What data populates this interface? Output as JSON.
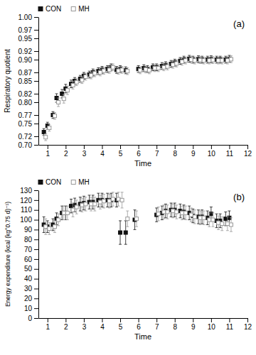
{
  "chart_data": [
    {
      "type": "scatter",
      "x_label": "Time",
      "y_label": "Respiratory quotient",
      "annotation": "(a)",
      "legend": "upper left",
      "grid": false,
      "xlim": [
        0.5,
        12
      ],
      "xticks": [
        1,
        2,
        3,
        4,
        5,
        6,
        7,
        8,
        9,
        10,
        11,
        12
      ],
      "ylim": [
        0.7,
        1.0
      ],
      "yticks": [
        {
          "value": 0.7,
          "label": "0.70"
        },
        0.72,
        0.75,
        0.77,
        {
          "value": 0.8,
          "label": "0.80"
        },
        0.82,
        0.85,
        0.87,
        {
          "value": 0.9,
          "label": "0.90"
        },
        0.92,
        0.95,
        0.97,
        {
          "value": 1.0,
          "label": "1.00"
        }
      ],
      "series": [
        {
          "name": "CON",
          "color": "#111111",
          "marker": "square",
          "x": [
            0.8,
            1.0,
            1.3,
            1.5,
            1.8,
            2.0,
            2.3,
            2.5,
            2.8,
            3.0,
            3.3,
            3.5,
            3.8,
            4.0,
            4.3,
            4.5,
            4.8,
            5.0,
            5.3,
            6.0,
            6.3,
            6.5,
            6.8,
            7.0,
            7.3,
            7.5,
            7.8,
            8.0,
            8.3,
            8.5,
            8.8,
            9.0,
            9.3,
            9.5,
            9.8,
            10.0,
            10.3,
            10.5,
            10.8,
            11.0
          ],
          "values": [
            0.73,
            0.745,
            0.77,
            0.81,
            0.82,
            0.832,
            0.843,
            0.85,
            0.855,
            0.862,
            0.865,
            0.87,
            0.873,
            0.876,
            0.878,
            0.882,
            0.876,
            0.878,
            0.875,
            0.878,
            0.88,
            0.878,
            0.882,
            0.882,
            0.885,
            0.887,
            0.89,
            0.893,
            0.897,
            0.9,
            0.902,
            0.9,
            0.901,
            0.9,
            0.9,
            0.901,
            0.9,
            0.9,
            0.9,
            0.902
          ],
          "error": [
            0.008,
            0.008,
            0.008,
            0.01,
            0.01,
            0.01,
            0.009,
            0.008,
            0.008,
            0.008,
            0.008,
            0.008,
            0.008,
            0.008,
            0.008,
            0.008,
            0.008,
            0.008,
            0.008,
            0.008,
            0.008,
            0.008,
            0.008,
            0.008,
            0.008,
            0.008,
            0.008,
            0.008,
            0.008,
            0.008,
            0.008,
            0.008,
            0.008,
            0.008,
            0.008,
            0.008,
            0.008,
            0.008,
            0.008,
            0.008
          ]
        },
        {
          "name": "MH",
          "color": "#999999",
          "marker": "square-open",
          "x": [
            0.9,
            1.1,
            1.4,
            1.6,
            1.9,
            2.1,
            2.4,
            2.6,
            2.9,
            3.1,
            3.4,
            3.6,
            3.9,
            4.1,
            4.4,
            4.6,
            4.9,
            5.1,
            5.4,
            6.1,
            6.4,
            6.6,
            6.9,
            7.1,
            7.4,
            7.6,
            7.9,
            8.1,
            8.4,
            8.6,
            8.9,
            9.1,
            9.4,
            9.6,
            9.9,
            10.1,
            10.4,
            10.6,
            10.9,
            11.1
          ],
          "values": [
            0.718,
            0.74,
            0.768,
            0.8,
            0.808,
            0.828,
            0.84,
            0.847,
            0.852,
            0.86,
            0.863,
            0.868,
            0.87,
            0.874,
            0.876,
            0.882,
            0.874,
            0.876,
            0.873,
            0.875,
            0.877,
            0.875,
            0.88,
            0.88,
            0.882,
            0.884,
            0.888,
            0.891,
            0.895,
            0.898,
            0.9,
            0.898,
            0.899,
            0.898,
            0.898,
            0.899,
            0.898,
            0.898,
            0.898,
            0.901
          ],
          "error": [
            0.008,
            0.008,
            0.008,
            0.01,
            0.01,
            0.01,
            0.009,
            0.008,
            0.008,
            0.008,
            0.008,
            0.008,
            0.008,
            0.008,
            0.008,
            0.008,
            0.008,
            0.008,
            0.008,
            0.008,
            0.008,
            0.008,
            0.008,
            0.008,
            0.008,
            0.008,
            0.008,
            0.008,
            0.008,
            0.008,
            0.008,
            0.008,
            0.008,
            0.008,
            0.008,
            0.008,
            0.008,
            0.008,
            0.008,
            0.008
          ]
        }
      ]
    },
    {
      "type": "scatter",
      "x_label": "Time",
      "y_label": "Energy expenditure (kcal (kg°0.75 d)⁻¹)",
      "annotation": "(b)",
      "legend": "upper left",
      "grid": false,
      "xlim": [
        0.5,
        12
      ],
      "xticks": [
        1,
        2,
        3,
        4,
        5,
        6,
        7,
        8,
        9,
        10,
        11,
        12
      ],
      "ylim": [
        0,
        130
      ],
      "yticks": [
        0,
        10,
        20,
        30,
        40,
        50,
        60,
        70,
        80,
        90,
        100,
        110,
        120,
        130
      ],
      "series": [
        {
          "name": "CON",
          "color": "#111111",
          "marker": "square",
          "x": [
            0.8,
            1.0,
            1.3,
            1.5,
            1.8,
            2.0,
            2.3,
            2.5,
            2.8,
            3.0,
            3.3,
            3.5,
            3.8,
            4.0,
            4.3,
            4.5,
            4.8,
            5.0,
            5.3,
            5.8,
            7.0,
            7.3,
            7.5,
            7.8,
            8.0,
            8.3,
            8.5,
            8.8,
            9.0,
            9.3,
            9.5,
            9.8,
            10.0,
            10.3,
            10.5,
            10.8,
            11.0
          ],
          "values": [
            95.0,
            93.0,
            95.0,
            101.0,
            107.0,
            107.0,
            114.0,
            115.0,
            116.0,
            117.0,
            118.0,
            118.0,
            120.0,
            120.0,
            120.0,
            120.0,
            120.0,
            87.0,
            87.0,
            100.0,
            105.0,
            107.0,
            109.0,
            110.0,
            110.0,
            109.0,
            108.0,
            107.0,
            104.0,
            103.0,
            103.0,
            102.0,
            106.0,
            99.0,
            99.0,
            101.0,
            102.0
          ],
          "error": [
            8.0,
            6.0,
            6.0,
            6.0,
            7.0,
            7.0,
            7.0,
            7.0,
            7.0,
            7.0,
            7.0,
            7.0,
            7.0,
            7.0,
            7.0,
            7.0,
            7.0,
            12.0,
            12.0,
            10.0,
            7.0,
            7.0,
            7.0,
            7.0,
            7.0,
            7.0,
            7.0,
            7.0,
            7.0,
            7.0,
            7.0,
            7.0,
            7.0,
            7.0,
            7.0,
            7.0,
            7.0
          ]
        },
        {
          "name": "MH",
          "color": "#999999",
          "marker": "square-open",
          "x": [
            0.9,
            1.1,
            1.4,
            1.6,
            1.9,
            2.1,
            2.4,
            2.6,
            2.9,
            3.1,
            3.4,
            3.6,
            3.9,
            4.1,
            4.4,
            4.6,
            4.9,
            5.1,
            5.4,
            5.9,
            7.1,
            7.4,
            7.6,
            7.9,
            8.1,
            8.4,
            8.6,
            8.9,
            9.1,
            9.4,
            9.6,
            9.9,
            10.1,
            10.4,
            10.6,
            10.9,
            11.1
          ],
          "values": [
            93.0,
            91.0,
            93.0,
            100.0,
            107.0,
            107.0,
            110.0,
            113.0,
            115.0,
            116.0,
            116.0,
            116.0,
            118.0,
            119.0,
            119.0,
            121.0,
            121.0,
            120.0,
            101.0,
            101.0,
            106.0,
            108.0,
            108.0,
            109.0,
            108.0,
            107.0,
            107.0,
            105.0,
            103.0,
            102.0,
            102.0,
            100.0,
            100.0,
            97.0,
            96.0,
            96.0,
            95.0
          ],
          "error": [
            8.0,
            6.0,
            6.0,
            6.0,
            7.0,
            7.0,
            7.0,
            7.0,
            7.0,
            7.0,
            7.0,
            7.0,
            7.0,
            7.0,
            7.0,
            7.0,
            7.0,
            8.0,
            8.0,
            8.0,
            7.0,
            7.0,
            7.0,
            7.0,
            7.0,
            7.0,
            7.0,
            7.0,
            7.0,
            7.0,
            7.0,
            7.0,
            7.0,
            7.0,
            7.0,
            7.0,
            7.0
          ]
        }
      ]
    }
  ]
}
